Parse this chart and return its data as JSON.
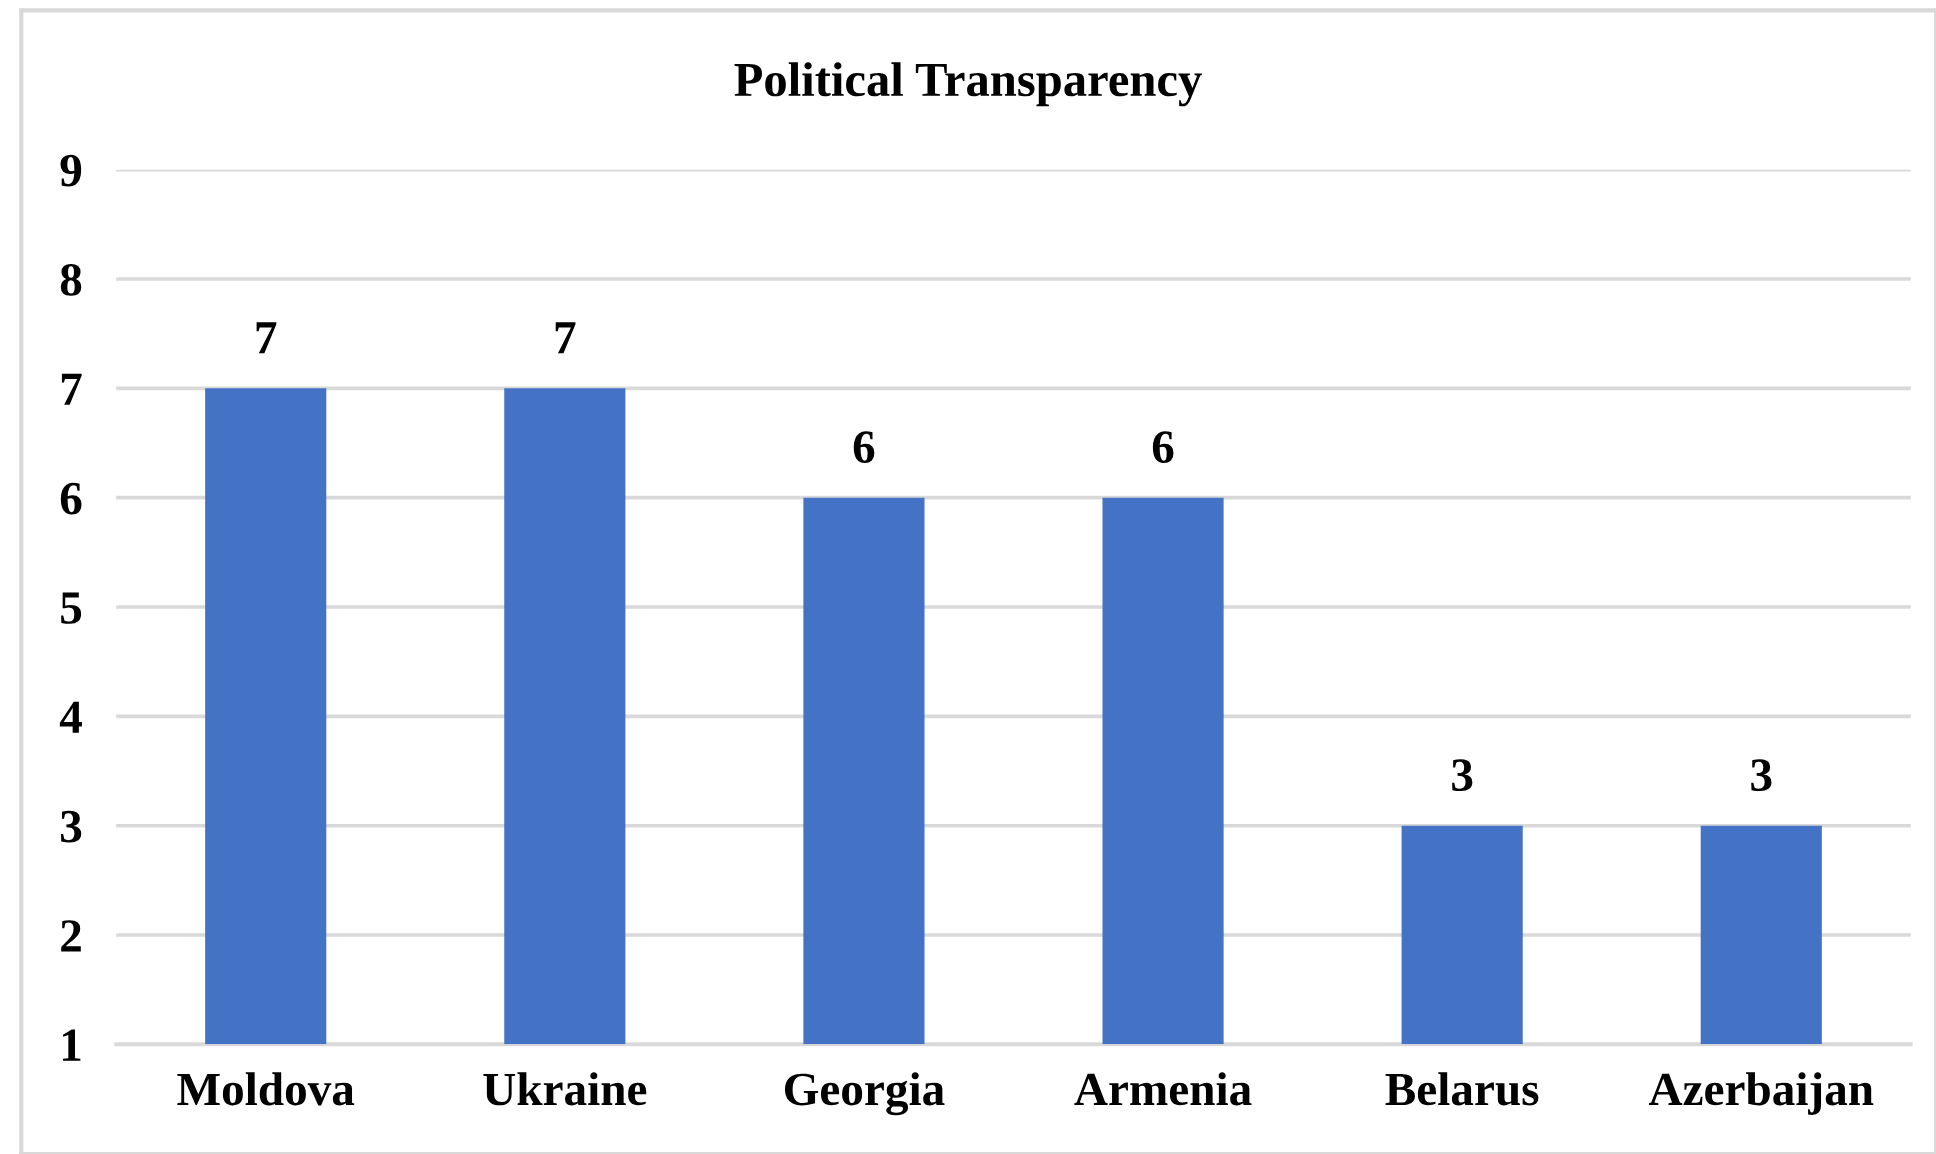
{
  "chart_data": {
    "type": "bar",
    "title": "Political Transparency",
    "categories": [
      "Moldova",
      "Ukraine",
      "Georgia",
      "Armenia",
      "Belarus",
      "Azerbaijan"
    ],
    "values": [
      7,
      7,
      6,
      6,
      3,
      3
    ],
    "color": "#4472c4",
    "ylim": [
      1,
      9
    ],
    "yticks": [
      1,
      2,
      3,
      4,
      5,
      6,
      7,
      8,
      9
    ],
    "grid": "y",
    "data_labels": true
  }
}
